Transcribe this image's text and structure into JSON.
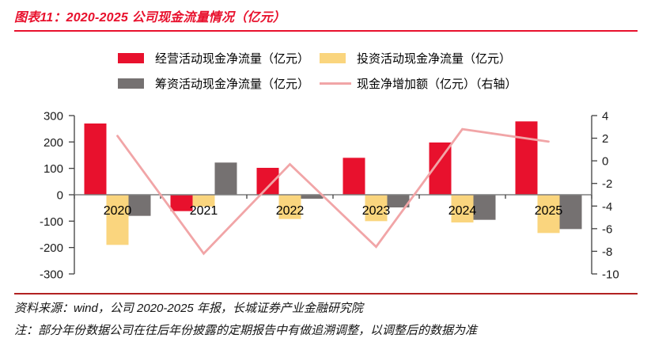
{
  "title": "图表11：2020-2025 公司现金流量情况（亿元）",
  "colors": {
    "accent_red": "#E8112D",
    "bar_operating": "#E8112D",
    "bar_investing": "#FAD57E",
    "bar_financing": "#757171",
    "line_net_change": "#F1A5A7",
    "title_rule": "#E8112D",
    "bottom_rule": "#B22222",
    "axis_line": "#404040",
    "zero_line": "#7F7F7F",
    "text_dark": "#141414"
  },
  "chart_data": {
    "type": "bar",
    "subtype": "clustered bars with overlay line on secondary axis",
    "categories": [
      "2020",
      "2021",
      "2022",
      "2023",
      "2024",
      "2025"
    ],
    "series": [
      {
        "name": "经营活动现金净流量（亿元）",
        "type": "bar",
        "axis": "left",
        "color": "#E8112D",
        "values": [
          270,
          -62,
          102,
          140,
          198,
          278
        ]
      },
      {
        "name": "投资活动现金净流量（亿元）",
        "type": "bar",
        "axis": "left",
        "color": "#FAD57E",
        "values": [
          -190,
          -45,
          -92,
          -100,
          -105,
          -145
        ]
      },
      {
        "name": "筹资活动现金净流量（亿元）",
        "type": "bar",
        "axis": "left",
        "color": "#757171",
        "values": [
          -80,
          122,
          -15,
          -48,
          -95,
          -130
        ]
      },
      {
        "name": "现金净增加额（亿元）（右轴）",
        "type": "line",
        "axis": "right",
        "color": "#F1A5A7",
        "values": [
          2.2,
          -8.2,
          -0.3,
          -7.6,
          2.8,
          1.7
        ]
      }
    ],
    "left_axis": {
      "min": -300,
      "max": 300,
      "step": 100,
      "ticks": [
        300,
        200,
        100,
        0,
        -100,
        -200,
        -300
      ]
    },
    "right_axis": {
      "min": -10,
      "max": 4,
      "step": 2,
      "ticks": [
        4,
        2,
        0,
        -2,
        -4,
        -6,
        -8,
        -10
      ]
    },
    "grid": false,
    "legend_position": "top"
  },
  "source": "资料来源：wind，公司 2020-2025 年报，长城证券产业金融研究院",
  "note": "注：部分年份数据公司在往后年份披露的定期报告中有做追溯调整，以调整后的数据为准"
}
